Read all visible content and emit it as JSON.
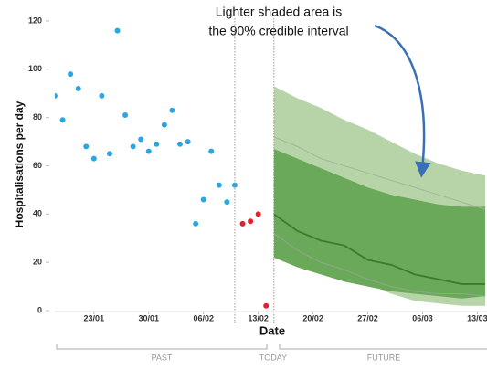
{
  "chart_data": {
    "type": "forecast",
    "annotation": [
      "Lighter shaded area is",
      "the 90% credible interval"
    ],
    "y_label": "Hospitalisations per day",
    "x_label": "Date",
    "xlim": [
      "18/01",
      "14/03"
    ],
    "xticks": [
      "23/01",
      "30/01",
      "06/02",
      "13/02",
      "20/02",
      "27/02",
      "06/03",
      "13/03"
    ],
    "ylim": [
      0,
      120
    ],
    "yticks": [
      0,
      20,
      40,
      60,
      80,
      100,
      120
    ],
    "vlines": [
      "10/02",
      "15/02"
    ],
    "periods": [
      "PAST",
      "TODAY",
      "FUTURE"
    ],
    "series": [
      {
        "color": "#2aa7e0",
        "x": [
          "18/01",
          "19/01",
          "20/01",
          "21/01",
          "22/01",
          "23/01",
          "24/01",
          "25/01",
          "26/01",
          "27/01",
          "28/01",
          "29/01",
          "30/01",
          "31/01",
          "01/02",
          "02/02",
          "03/02",
          "04/02",
          "05/02",
          "06/02",
          "07/02",
          "08/02",
          "09/02",
          "10/02"
        ],
        "values": [
          89,
          79,
          98,
          92,
          68,
          63,
          89,
          65,
          116,
          81,
          68,
          71,
          66,
          69,
          77,
          83,
          69,
          70,
          36,
          46,
          66,
          52,
          45,
          52
        ]
      },
      {
        "color": "#e3202b",
        "x": [
          "11/02",
          "12/02",
          "13/02",
          "14/02"
        ],
        "values": [
          36,
          37,
          40,
          2
        ]
      }
    ],
    "bands": [
      {
        "color": "#b7d4a9",
        "x": [
          "15/02",
          "18/02",
          "21/02",
          "24/02",
          "27/02",
          "02/03",
          "05/03",
          "08/03",
          "11/03",
          "14/03"
        ],
        "lower": [
          35,
          28,
          22,
          16,
          11,
          7,
          4,
          3,
          2,
          2
        ],
        "upper": [
          93,
          88,
          84,
          79,
          75,
          70,
          65,
          61,
          58,
          56
        ]
      },
      {
        "color": "#6aa85a",
        "x": [
          "15/02",
          "18/02",
          "21/02",
          "24/02",
          "27/02",
          "02/03",
          "05/03",
          "08/03",
          "11/03",
          "14/03"
        ],
        "lower": [
          22,
          18,
          15,
          12,
          10,
          8,
          7,
          6,
          5,
          6
        ],
        "upper": [
          67,
          63,
          59,
          55,
          51,
          48,
          46,
          44,
          43,
          43
        ]
      }
    ],
    "lines": [
      {
        "color": "#9fb89a",
        "x": [
          "15/02",
          "18/02",
          "21/02",
          "24/02",
          "27/02",
          "02/03",
          "05/03",
          "08/03",
          "11/03",
          "14/03"
        ],
        "values": [
          72,
          68,
          63,
          60,
          57,
          54,
          51,
          48,
          45,
          42
        ]
      },
      {
        "color": "#8fa88a",
        "x": [
          "15/02",
          "18/02",
          "21/02",
          "24/02",
          "27/02",
          "02/03",
          "05/03",
          "08/03",
          "11/03",
          "14/03"
        ],
        "values": [
          32,
          25,
          20,
          17,
          13,
          10,
          8,
          7,
          7,
          6
        ]
      },
      {
        "color": "#3c7a2e",
        "x": [
          "15/02",
          "18/02",
          "21/02",
          "24/02",
          "27/02",
          "02/03",
          "05/03",
          "08/03",
          "11/03",
          "14/03"
        ],
        "values": [
          40,
          33,
          29,
          27,
          21,
          19,
          15,
          13,
          11,
          11
        ]
      }
    ]
  }
}
